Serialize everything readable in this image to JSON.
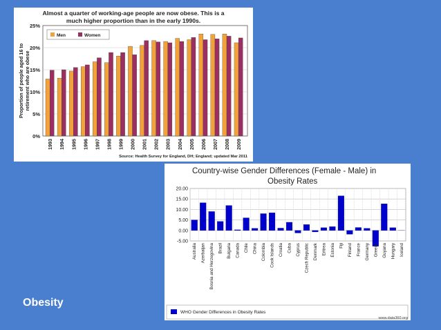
{
  "slide": {
    "title": "Obesity"
  },
  "chart_data": [
    {
      "type": "bar",
      "title": "Almost a quarter of working-age people are now obese. This is a much higher proportion than in the early 1990s.",
      "title_lines": [
        "Almost a quarter of working-age people are now obese. This is a",
        "much higher proportion than in the early 1990s."
      ],
      "ylabel": "Proportion of people aged 16 to retirement who are obese",
      "ylabel_lines": [
        "Proportion of people aged 16 to",
        "retirement who are obese"
      ],
      "xlabel": "",
      "source": "Source: Health Survey for England, DH; England; updated Mar 2011",
      "ylim": [
        0,
        25
      ],
      "yticks": [
        "0%",
        "5%",
        "10%",
        "15%",
        "20%",
        "25%"
      ],
      "categories": [
        "1993",
        "1994",
        "1995",
        "1996",
        "1997",
        "1998",
        "1999",
        "2000",
        "2001",
        "2002",
        "2003",
        "2004",
        "2005",
        "2006",
        "2007",
        "2008",
        "2009"
      ],
      "series": [
        {
          "name": "Men",
          "color": "#f2a23a",
          "values": [
            12.9,
            13.1,
            14.7,
            15.7,
            16.8,
            16.6,
            18.1,
            20.3,
            20.5,
            21.6,
            21.4,
            22.1,
            21.8,
            23.1,
            23.0,
            23.1,
            21.1
          ]
        },
        {
          "name": "Women",
          "color": "#9b2f62",
          "values": [
            14.9,
            15.0,
            15.5,
            16.1,
            17.7,
            18.9,
            18.9,
            18.4,
            21.6,
            21.3,
            21.1,
            21.4,
            22.3,
            21.8,
            22.0,
            22.6,
            22.2
          ]
        }
      ],
      "legend": "top-left"
    },
    {
      "type": "bar",
      "title": "Country-wise Gender Differences (Female - Male) in Obesity Rates",
      "title_lines": [
        "Country-wise Gender Differences (Female - Male) in",
        "Obesity Rates"
      ],
      "ylim": [
        -5,
        20
      ],
      "yticks": [
        "-5.00",
        "0.00",
        "5.00",
        "10.00",
        "15.00",
        "20.00"
      ],
      "categories": [
        "Australia",
        "Azerbaijan",
        "Bosnia and Herzegovina",
        "Brazil",
        "Bulgaria",
        "Canada",
        "Chile",
        "China",
        "Colombia",
        "Cook Islands",
        "Croatia",
        "Cuba",
        "Cyprus",
        "Czech Republic",
        "Denmark",
        "Eritrea",
        "Estonia",
        "Fiji",
        "Finland",
        "France",
        "Germany",
        "Greece",
        "Guyana",
        "Hungary",
        "Iceland"
      ],
      "series": [
        {
          "name": "WHO Gender Differences in Obesity Rates",
          "color": "#0000cc",
          "values": [
            5.0,
            13.2,
            9.0,
            4.3,
            11.9,
            0.3,
            6.0,
            1.0,
            8.0,
            8.4,
            1.1,
            3.9,
            -1.2,
            2.8,
            -0.7,
            1.3,
            1.8,
            16.5,
            -1.8,
            1.4,
            1.0,
            -7.5,
            12.7,
            1.3,
            0.0
          ]
        }
      ],
      "watermark": "www.data360.org"
    }
  ]
}
